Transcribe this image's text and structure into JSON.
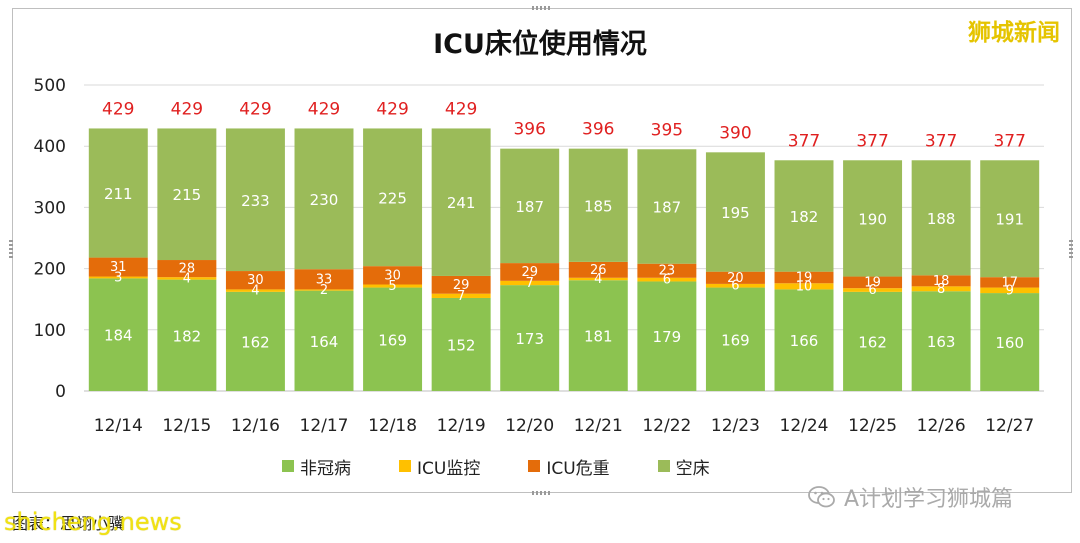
{
  "brand_top": "狮城新闻",
  "credit": "A计划学习狮城篇",
  "source_note": "图表：思翊小骥",
  "watermark": "shicheng.news",
  "colors": {
    "non_covid": "#8cc350",
    "icu_monitor": "#ffc000",
    "icu_critical": "#e46c0a",
    "empty_bed": "#9bbb59",
    "total_label": "#e02020",
    "axis_text": "#222222",
    "grid": "#d9d9d9"
  },
  "chart_data": {
    "type": "bar",
    "stacked": true,
    "title": "ICU床位使用情况",
    "xlabel": "",
    "ylabel": "",
    "ylim": [
      0,
      500
    ],
    "yticks": [
      0,
      100,
      200,
      300,
      400,
      500
    ],
    "grid": true,
    "legend_position": "bottom",
    "categories": [
      "12/14",
      "12/15",
      "12/16",
      "12/17",
      "12/18",
      "12/19",
      "12/20",
      "12/21",
      "12/22",
      "12/23",
      "12/24",
      "12/25",
      "12/26",
      "12/27"
    ],
    "series": [
      {
        "name": "非冠病",
        "color": "#8cc350",
        "values": [
          184,
          182,
          162,
          164,
          169,
          152,
          173,
          181,
          179,
          169,
          166,
          162,
          163,
          160
        ]
      },
      {
        "name": "ICU监控",
        "color": "#ffc000",
        "values": [
          3,
          4,
          4,
          2,
          5,
          7,
          7,
          4,
          6,
          6,
          10,
          6,
          8,
          9
        ]
      },
      {
        "name": "ICU危重",
        "color": "#e46c0a",
        "values": [
          31,
          28,
          30,
          33,
          30,
          29,
          29,
          26,
          23,
          20,
          19,
          19,
          18,
          17
        ]
      },
      {
        "name": "空床",
        "color": "#9bbb59",
        "values": [
          211,
          215,
          233,
          230,
          225,
          241,
          187,
          185,
          187,
          195,
          182,
          190,
          188,
          191
        ]
      }
    ],
    "totals": [
      429,
      429,
      429,
      429,
      429,
      429,
      396,
      396,
      395,
      390,
      377,
      377,
      377,
      377
    ]
  }
}
